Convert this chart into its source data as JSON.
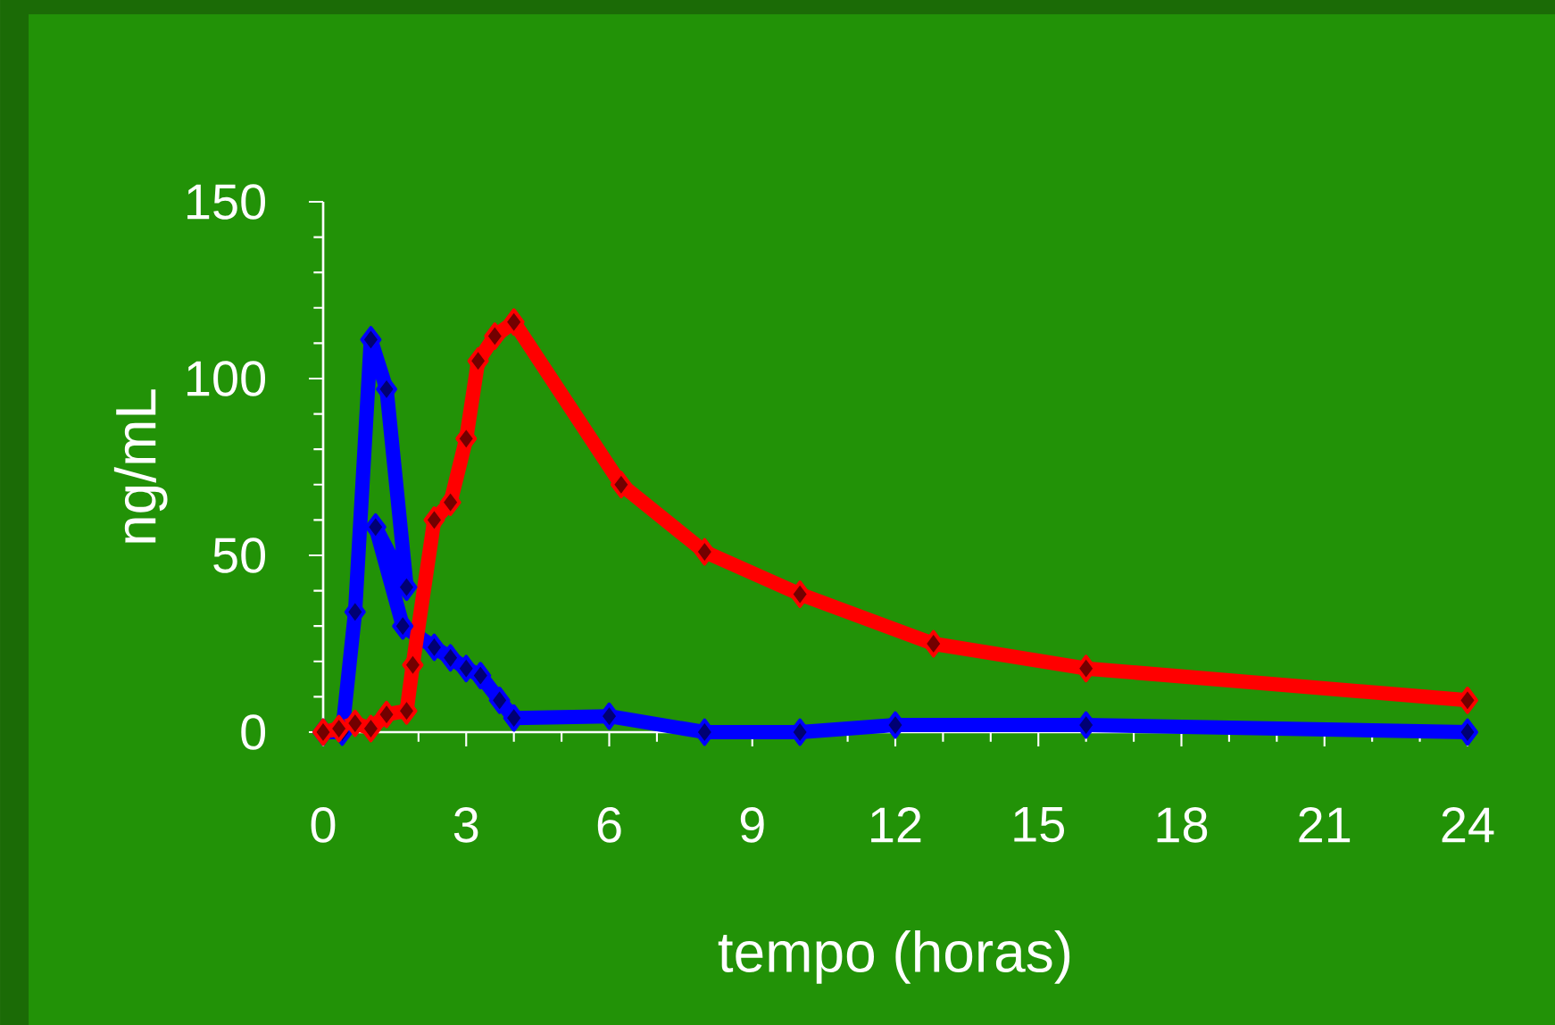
{
  "chart_data": {
    "type": "line",
    "xlabel": "tempo (horas)",
    "ylabel": "ng/mL",
    "xlim": [
      0,
      24
    ],
    "ylim": [
      0,
      150
    ],
    "xticks": [
      0,
      3,
      6,
      9,
      12,
      15,
      18,
      21,
      24
    ],
    "yticks": [
      0,
      50,
      100,
      150
    ],
    "marker": "diamond",
    "line_style": "solid",
    "series": [
      {
        "color": "#0000ff",
        "x": [
          0,
          0.4,
          0.67,
          1.0,
          1.33,
          1.75,
          1.1,
          1.67,
          2.33,
          2.67,
          3.0,
          3.3,
          3.7,
          4.0,
          6.0,
          8.0,
          10.0,
          12.0,
          16.0,
          24.0
        ],
        "values": [
          0,
          0,
          34,
          111,
          97,
          41,
          58,
          30,
          24,
          21,
          18,
          16,
          9,
          4,
          4.5,
          0,
          0,
          2,
          2,
          0
        ]
      },
      {
        "color": "#ff0000",
        "x": [
          0,
          0.33,
          0.67,
          1.0,
          1.33,
          1.75,
          1.88,
          2.33,
          2.67,
          3.0,
          3.25,
          3.6,
          4.0,
          6.25,
          8.0,
          10.0,
          12.8,
          16.0,
          24.0
        ],
        "values": [
          0,
          1,
          2.5,
          1,
          5,
          6,
          19,
          60,
          65,
          83,
          105,
          112,
          116,
          70,
          51,
          39,
          25,
          18,
          9
        ]
      }
    ]
  }
}
